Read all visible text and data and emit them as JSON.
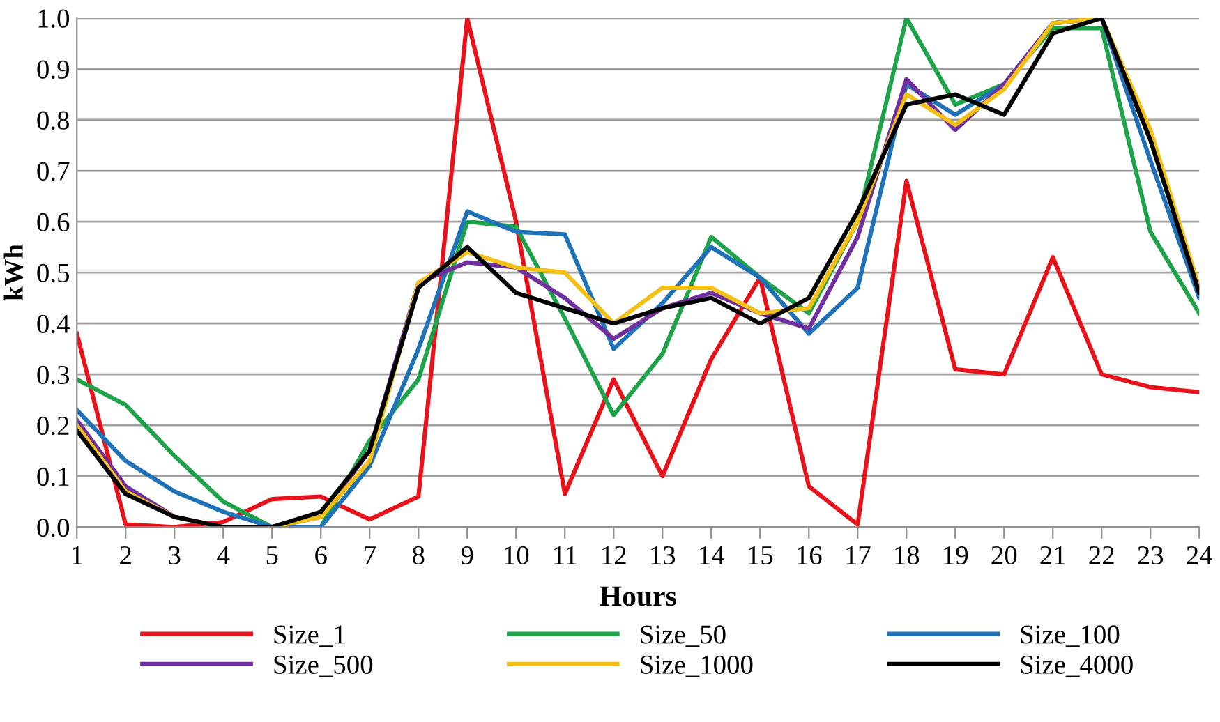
{
  "chart_data": {
    "type": "line",
    "xlabel": "Hours",
    "ylabel": "kWh",
    "categories": [
      "1",
      "2",
      "3",
      "4",
      "5",
      "6",
      "7",
      "8",
      "9",
      "10",
      "11",
      "12",
      "13",
      "14",
      "15",
      "16",
      "17",
      "18",
      "19",
      "20",
      "21",
      "22",
      "23",
      "24"
    ],
    "ylim": [
      0,
      1.0
    ],
    "yticks": [
      {
        "value": 0,
        "label": "0.0"
      },
      {
        "value": 0.1,
        "label": "0.1"
      },
      {
        "value": 0.2,
        "label": "0.2"
      },
      {
        "value": 0.3,
        "label": "0.3"
      },
      {
        "value": 0.4,
        "label": "0.4"
      },
      {
        "value": 0.5,
        "label": "0.5"
      },
      {
        "value": 0.6,
        "label": "0.6"
      },
      {
        "value": 0.7,
        "label": "0.7"
      },
      {
        "value": 0.8,
        "label": "0.8"
      },
      {
        "value": 0.9,
        "label": "0.9"
      },
      {
        "value": 1.0,
        "label": "1.0"
      }
    ],
    "grid": "y",
    "legend": "bottom",
    "marker": "none",
    "line_style": "solid",
    "series": [
      {
        "name": "Size_1",
        "color": "#e8121b",
        "values": [
          0.38,
          0.005,
          0.0,
          0.01,
          0.055,
          0.06,
          0.015,
          0.06,
          1.0,
          0.6,
          0.065,
          0.29,
          0.1,
          0.33,
          0.49,
          0.08,
          0.005,
          0.68,
          0.31,
          0.3,
          0.53,
          0.3,
          0.275,
          0.265
        ]
      },
      {
        "name": "Size_50",
        "color": "#1fa34a",
        "values": [
          0.29,
          0.24,
          0.14,
          0.05,
          0.0,
          0.0,
          0.17,
          0.29,
          0.6,
          0.59,
          0.41,
          0.22,
          0.34,
          0.57,
          0.49,
          0.42,
          0.6,
          1.0,
          0.83,
          0.87,
          0.98,
          0.98,
          0.58,
          0.42
        ]
      },
      {
        "name": "Size_100",
        "color": "#1f72b8",
        "values": [
          0.23,
          0.13,
          0.07,
          0.03,
          0.0,
          0.0,
          0.12,
          0.35,
          0.62,
          0.58,
          0.575,
          0.35,
          0.44,
          0.55,
          0.49,
          0.38,
          0.47,
          0.87,
          0.81,
          0.87,
          0.99,
          1.0,
          0.72,
          0.45
        ]
      },
      {
        "name": "Size_500",
        "color": "#6f2f9f",
        "values": [
          0.21,
          0.08,
          0.02,
          0.0,
          0.0,
          0.02,
          0.15,
          0.48,
          0.52,
          0.51,
          0.45,
          0.37,
          0.43,
          0.46,
          0.42,
          0.39,
          0.57,
          0.88,
          0.78,
          0.87,
          0.99,
          1.0,
          0.76,
          0.47
        ]
      },
      {
        "name": "Size_1000",
        "color": "#f5c016",
        "values": [
          0.2,
          0.07,
          0.02,
          0.0,
          0.0,
          0.02,
          0.13,
          0.48,
          0.54,
          0.51,
          0.5,
          0.4,
          0.47,
          0.47,
          0.42,
          0.43,
          0.6,
          0.85,
          0.79,
          0.86,
          0.99,
          1.0,
          0.78,
          0.47
        ]
      },
      {
        "name": "Size_4000",
        "color": "#000000",
        "values": [
          0.19,
          0.065,
          0.02,
          0.0,
          0.0,
          0.03,
          0.15,
          0.47,
          0.55,
          0.46,
          0.43,
          0.4,
          0.43,
          0.45,
          0.4,
          0.45,
          0.62,
          0.83,
          0.85,
          0.81,
          0.97,
          1.0,
          0.76,
          0.46
        ]
      }
    ]
  }
}
